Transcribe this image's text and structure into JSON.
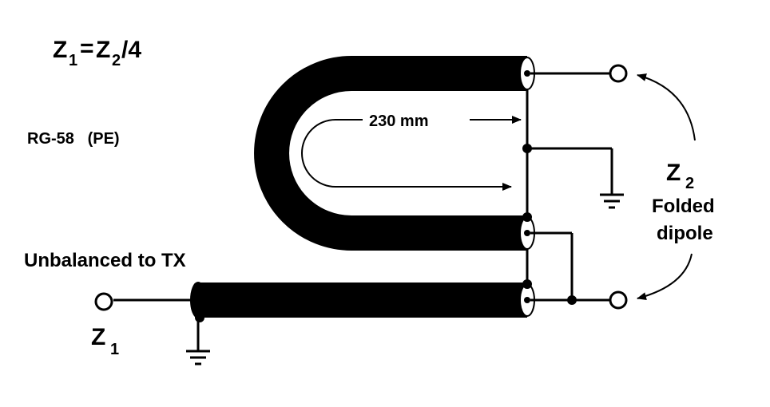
{
  "formula": {
    "z": "Z",
    "sub1": "1",
    "eq": "=",
    "z2": "Z",
    "sub2": "2",
    "div": "/4"
  },
  "cable_type": "RG-58   (PE)",
  "length_label": "230 mm",
  "z2_label": {
    "z": "Z",
    "sub": "2"
  },
  "folded_label": "Folded",
  "dipole_label": "dipole",
  "unbalanced_label": "Unbalanced to TX",
  "z1_label": {
    "z": "Z",
    "sub": "1"
  }
}
